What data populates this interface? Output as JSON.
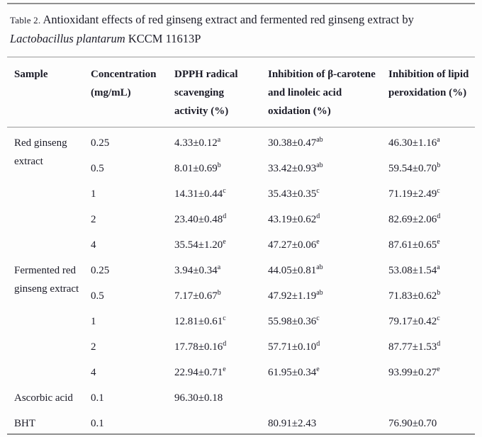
{
  "caption": {
    "label": "Table 2.",
    "line1": "Antioxidant effects of red ginseng extract and fermented red ginseng extract by",
    "species": "Lactobacillus plantarum",
    "line2_tail": "KCCM 11613P"
  },
  "header": {
    "sample": "Sample",
    "concentration": "Concentration (mg/mL)",
    "dpph": "DPPH radical scavenging activity (%)",
    "carotene": "Inhibition of β-carotene and linoleic acid oxidation (%)",
    "lipid": "Inhibition of lipid peroxidation (%)"
  },
  "colors": {
    "text": "#1c1c28",
    "rule": "#8f8f8f",
    "background": "#fdfdfd"
  },
  "rows": [
    {
      "sample": "Red ginseng extract",
      "conc": "0.25",
      "dpph": {
        "v": "4.33±0.12",
        "s": "a"
      },
      "carotene": {
        "v": "30.38±0.47",
        "s": "ab"
      },
      "lipid": {
        "v": "46.30±1.16",
        "s": "a"
      }
    },
    {
      "conc": "0.5",
      "dpph": {
        "v": "8.01±0.69",
        "s": "b"
      },
      "carotene": {
        "v": "33.42±0.93",
        "s": "ab"
      },
      "lipid": {
        "v": "59.54±0.70",
        "s": "b"
      }
    },
    {
      "conc": "1",
      "dpph": {
        "v": "14.31±0.44",
        "s": "c"
      },
      "carotene": {
        "v": "35.43±0.35",
        "s": "c"
      },
      "lipid": {
        "v": "71.19±2.49",
        "s": "c"
      }
    },
    {
      "conc": "2",
      "dpph": {
        "v": "23.40±0.48",
        "s": "d"
      },
      "carotene": {
        "v": "43.19±0.62",
        "s": "d"
      },
      "lipid": {
        "v": "82.69±2.06",
        "s": "d"
      }
    },
    {
      "conc": "4",
      "dpph": {
        "v": "35.54±1.20",
        "s": "e"
      },
      "carotene": {
        "v": "47.27±0.06",
        "s": "e"
      },
      "lipid": {
        "v": "87.61±0.65",
        "s": "e"
      }
    },
    {
      "sample": "Fermented red ginseng extract",
      "conc": "0.25",
      "dpph": {
        "v": "3.94±0.34",
        "s": "a"
      },
      "carotene": {
        "v": "44.05±0.81",
        "s": "ab"
      },
      "lipid": {
        "v": "53.08±1.54",
        "s": "a"
      }
    },
    {
      "conc": "0.5",
      "dpph": {
        "v": "7.17±0.67",
        "s": "b"
      },
      "carotene": {
        "v": "47.92±1.19",
        "s": "ab"
      },
      "lipid": {
        "v": "71.83±0.62",
        "s": "b"
      }
    },
    {
      "conc": "1",
      "dpph": {
        "v": "12.81±0.61",
        "s": "c"
      },
      "carotene": {
        "v": "55.98±0.36",
        "s": "c"
      },
      "lipid": {
        "v": "79.17±0.42",
        "s": "c"
      }
    },
    {
      "conc": "2",
      "dpph": {
        "v": "17.78±0.16",
        "s": "d"
      },
      "carotene": {
        "v": "57.71±0.10",
        "s": "d"
      },
      "lipid": {
        "v": "87.77±1.53",
        "s": "d"
      }
    },
    {
      "conc": "4",
      "dpph": {
        "v": "22.94±0.71",
        "s": "e"
      },
      "carotene": {
        "v": "61.95±0.34",
        "s": "e"
      },
      "lipid": {
        "v": "93.99±0.27",
        "s": "e"
      }
    },
    {
      "sample": "Ascorbic acid",
      "conc": "0.1",
      "dpph": {
        "v": "96.30±0.18",
        "s": ""
      },
      "carotene": {
        "v": "",
        "s": ""
      },
      "lipid": {
        "v": "",
        "s": ""
      }
    },
    {
      "sample": "BHT",
      "conc": "0.1",
      "dpph": {
        "v": "",
        "s": ""
      },
      "carotene": {
        "v": "80.91±2.43",
        "s": ""
      },
      "lipid": {
        "v": "76.90±0.70",
        "s": ""
      }
    }
  ]
}
